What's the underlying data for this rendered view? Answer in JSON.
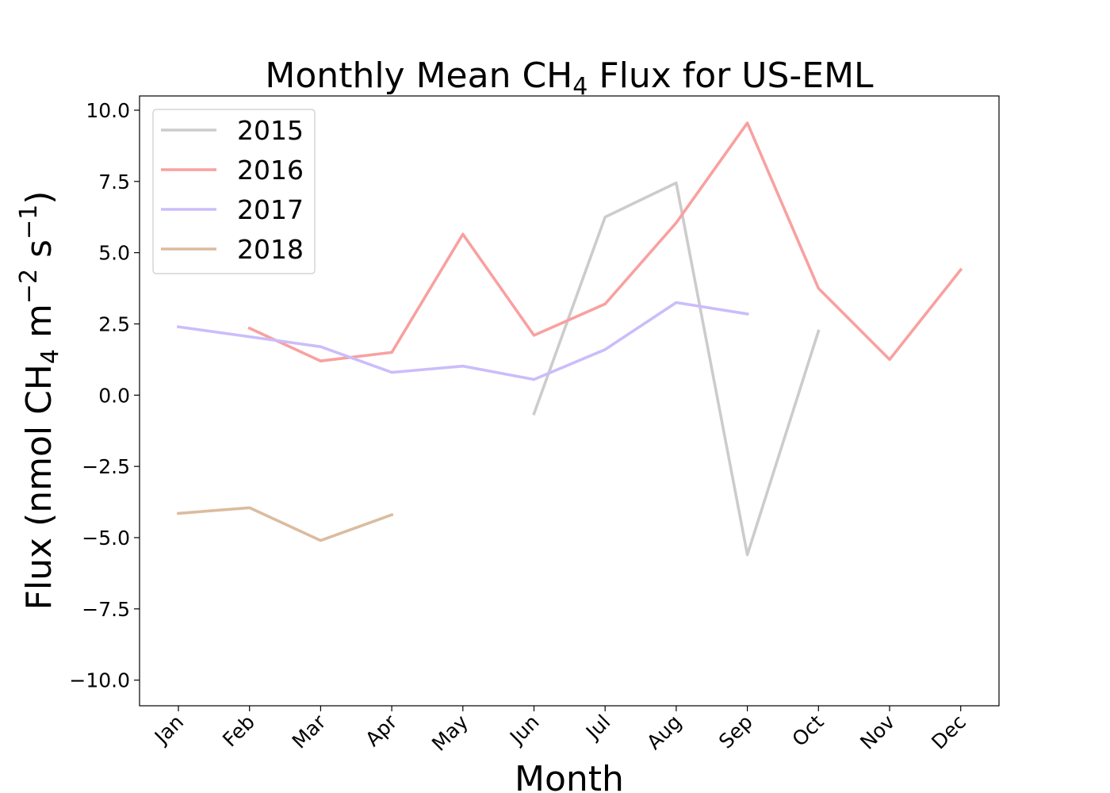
{
  "chart_data": {
    "type": "line",
    "title": {
      "prefix": "Monthly Mean CH",
      "sub": "4",
      "suffix": " Flux for US-EML"
    },
    "xlabel": "Month",
    "ylabel": {
      "prefix": "Flux (nmol CH",
      "sub": "4",
      "middle": " m",
      "sup1": "−2",
      "middle2": " s",
      "sup2": "−1",
      "suffix": ")"
    },
    "categories": [
      "Jan",
      "Feb",
      "Mar",
      "Apr",
      "May",
      "Jun",
      "Jul",
      "Aug",
      "Sep",
      "Oct",
      "Nov",
      "Dec"
    ],
    "ylim": [
      -10.9,
      10.5
    ],
    "yticks": [
      10.0,
      7.5,
      5.0,
      2.5,
      0.0,
      -2.5,
      -5.0,
      -7.5,
      -10.0
    ],
    "ytick_labels": [
      "10.0",
      "7.5",
      "5.0",
      "2.5",
      "0.0",
      "−2.5",
      "−5.0",
      "−7.5",
      "−10.0"
    ],
    "grid": false,
    "legend_position": "top-left",
    "series": [
      {
        "name": "2015",
        "color": "#cccccc",
        "values": [
          null,
          null,
          null,
          null,
          null,
          -0.65,
          6.25,
          7.45,
          -5.6,
          2.25,
          null,
          null
        ]
      },
      {
        "name": "2016",
        "color": "#f8a1a0",
        "values": [
          null,
          2.35,
          1.2,
          1.5,
          5.65,
          2.1,
          3.2,
          6.05,
          9.55,
          3.75,
          1.25,
          4.4
        ]
      },
      {
        "name": "2017",
        "color": "#cbbdfa",
        "values": [
          2.4,
          2.05,
          1.7,
          0.8,
          1.02,
          0.55,
          1.6,
          3.25,
          2.85,
          null,
          null,
          null
        ]
      },
      {
        "name": "2018",
        "color": "#dbbc9e",
        "values": [
          -4.15,
          -3.95,
          -5.1,
          -4.2,
          null,
          null,
          null,
          null,
          null,
          null,
          null,
          null
        ]
      }
    ]
  }
}
